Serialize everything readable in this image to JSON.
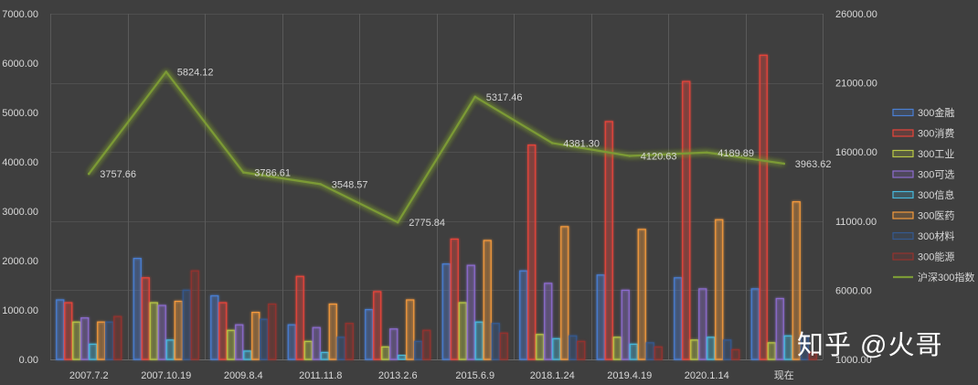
{
  "chart_data": {
    "type": "bar",
    "categories": [
      "2007.7.2",
      "2007.10.19",
      "2009.8.4",
      "2011.11.8",
      "2013.2.6",
      "2015.6.9",
      "2018.1.24",
      "2019.4.19",
      "2020.1.14",
      "现在"
    ],
    "ylim": [
      0,
      7000
    ],
    "yticks": [
      "0.00",
      "1000.00",
      "2000.00",
      "3000.00",
      "4000.00",
      "5000.00",
      "6000.00",
      "7000.00"
    ],
    "ylim_right": [
      1000,
      26000
    ],
    "yticks_right": [
      "1000.00",
      "6000.00",
      "11000.00",
      "16000.00",
      "21000.00",
      "26000.00"
    ],
    "grid": true,
    "legend": "right",
    "series": [
      {
        "name": "300金融",
        "type": "bar",
        "axis": "right",
        "color": "#4a7fd4",
        "values": [
          5300,
          8300,
          5600,
          3500,
          4600,
          7900,
          7400,
          7100,
          6900,
          6100
        ]
      },
      {
        "name": "300消费",
        "type": "bar",
        "axis": "right",
        "color": "#e8443a",
        "values": [
          5100,
          6900,
          5100,
          7000,
          5900,
          9700,
          16500,
          18200,
          21100,
          23000
        ]
      },
      {
        "name": "300工业",
        "type": "bar",
        "axis": "right",
        "color": "#b8c744",
        "values": [
          3700,
          5100,
          3100,
          2300,
          1900,
          5100,
          2800,
          2600,
          2400,
          2200
        ]
      },
      {
        "name": "300可选",
        "type": "bar",
        "axis": "right",
        "color": "#8d6ccf",
        "values": [
          4000,
          4900,
          3500,
          3300,
          3200,
          7800,
          6500,
          6000,
          6100,
          5400
        ]
      },
      {
        "name": "300信息",
        "type": "bar",
        "axis": "right",
        "color": "#46b8dc",
        "values": [
          2100,
          2400,
          1600,
          1500,
          1300,
          3700,
          2500,
          2100,
          2600,
          2700
        ]
      },
      {
        "name": "300医药",
        "type": "bar",
        "axis": "right",
        "color": "#f59a3c",
        "values": [
          3700,
          5200,
          4400,
          5000,
          5300,
          9600,
          10600,
          10400,
          11100,
          12400
        ]
      },
      {
        "name": "300材料",
        "type": "bar",
        "axis": "right",
        "color": "#34598f",
        "values": [
          3700,
          6000,
          3900,
          2600,
          2300,
          3600,
          2700,
          2200,
          2400,
          2700
        ]
      },
      {
        "name": "300能源",
        "type": "bar",
        "axis": "right",
        "color": "#94332e",
        "values": [
          4100,
          7400,
          5000,
          3600,
          3100,
          2900,
          2300,
          1900,
          1700,
          1500
        ]
      },
      {
        "name": "沪深300指数",
        "type": "line",
        "axis": "left",
        "color": "#7b9a36",
        "values": [
          3757.66,
          5824.12,
          3786.61,
          3548.57,
          2775.84,
          5317.46,
          4381.3,
          4120.63,
          4189.89,
          3963.62
        ],
        "labels": [
          "3757.66",
          "5824.12",
          "3786.61",
          "3548.57",
          "2775.84",
          "5317.46",
          "4381.30",
          "4120.63",
          "4189.89",
          "3963.62"
        ]
      }
    ]
  },
  "watermark": "知乎 @火哥"
}
